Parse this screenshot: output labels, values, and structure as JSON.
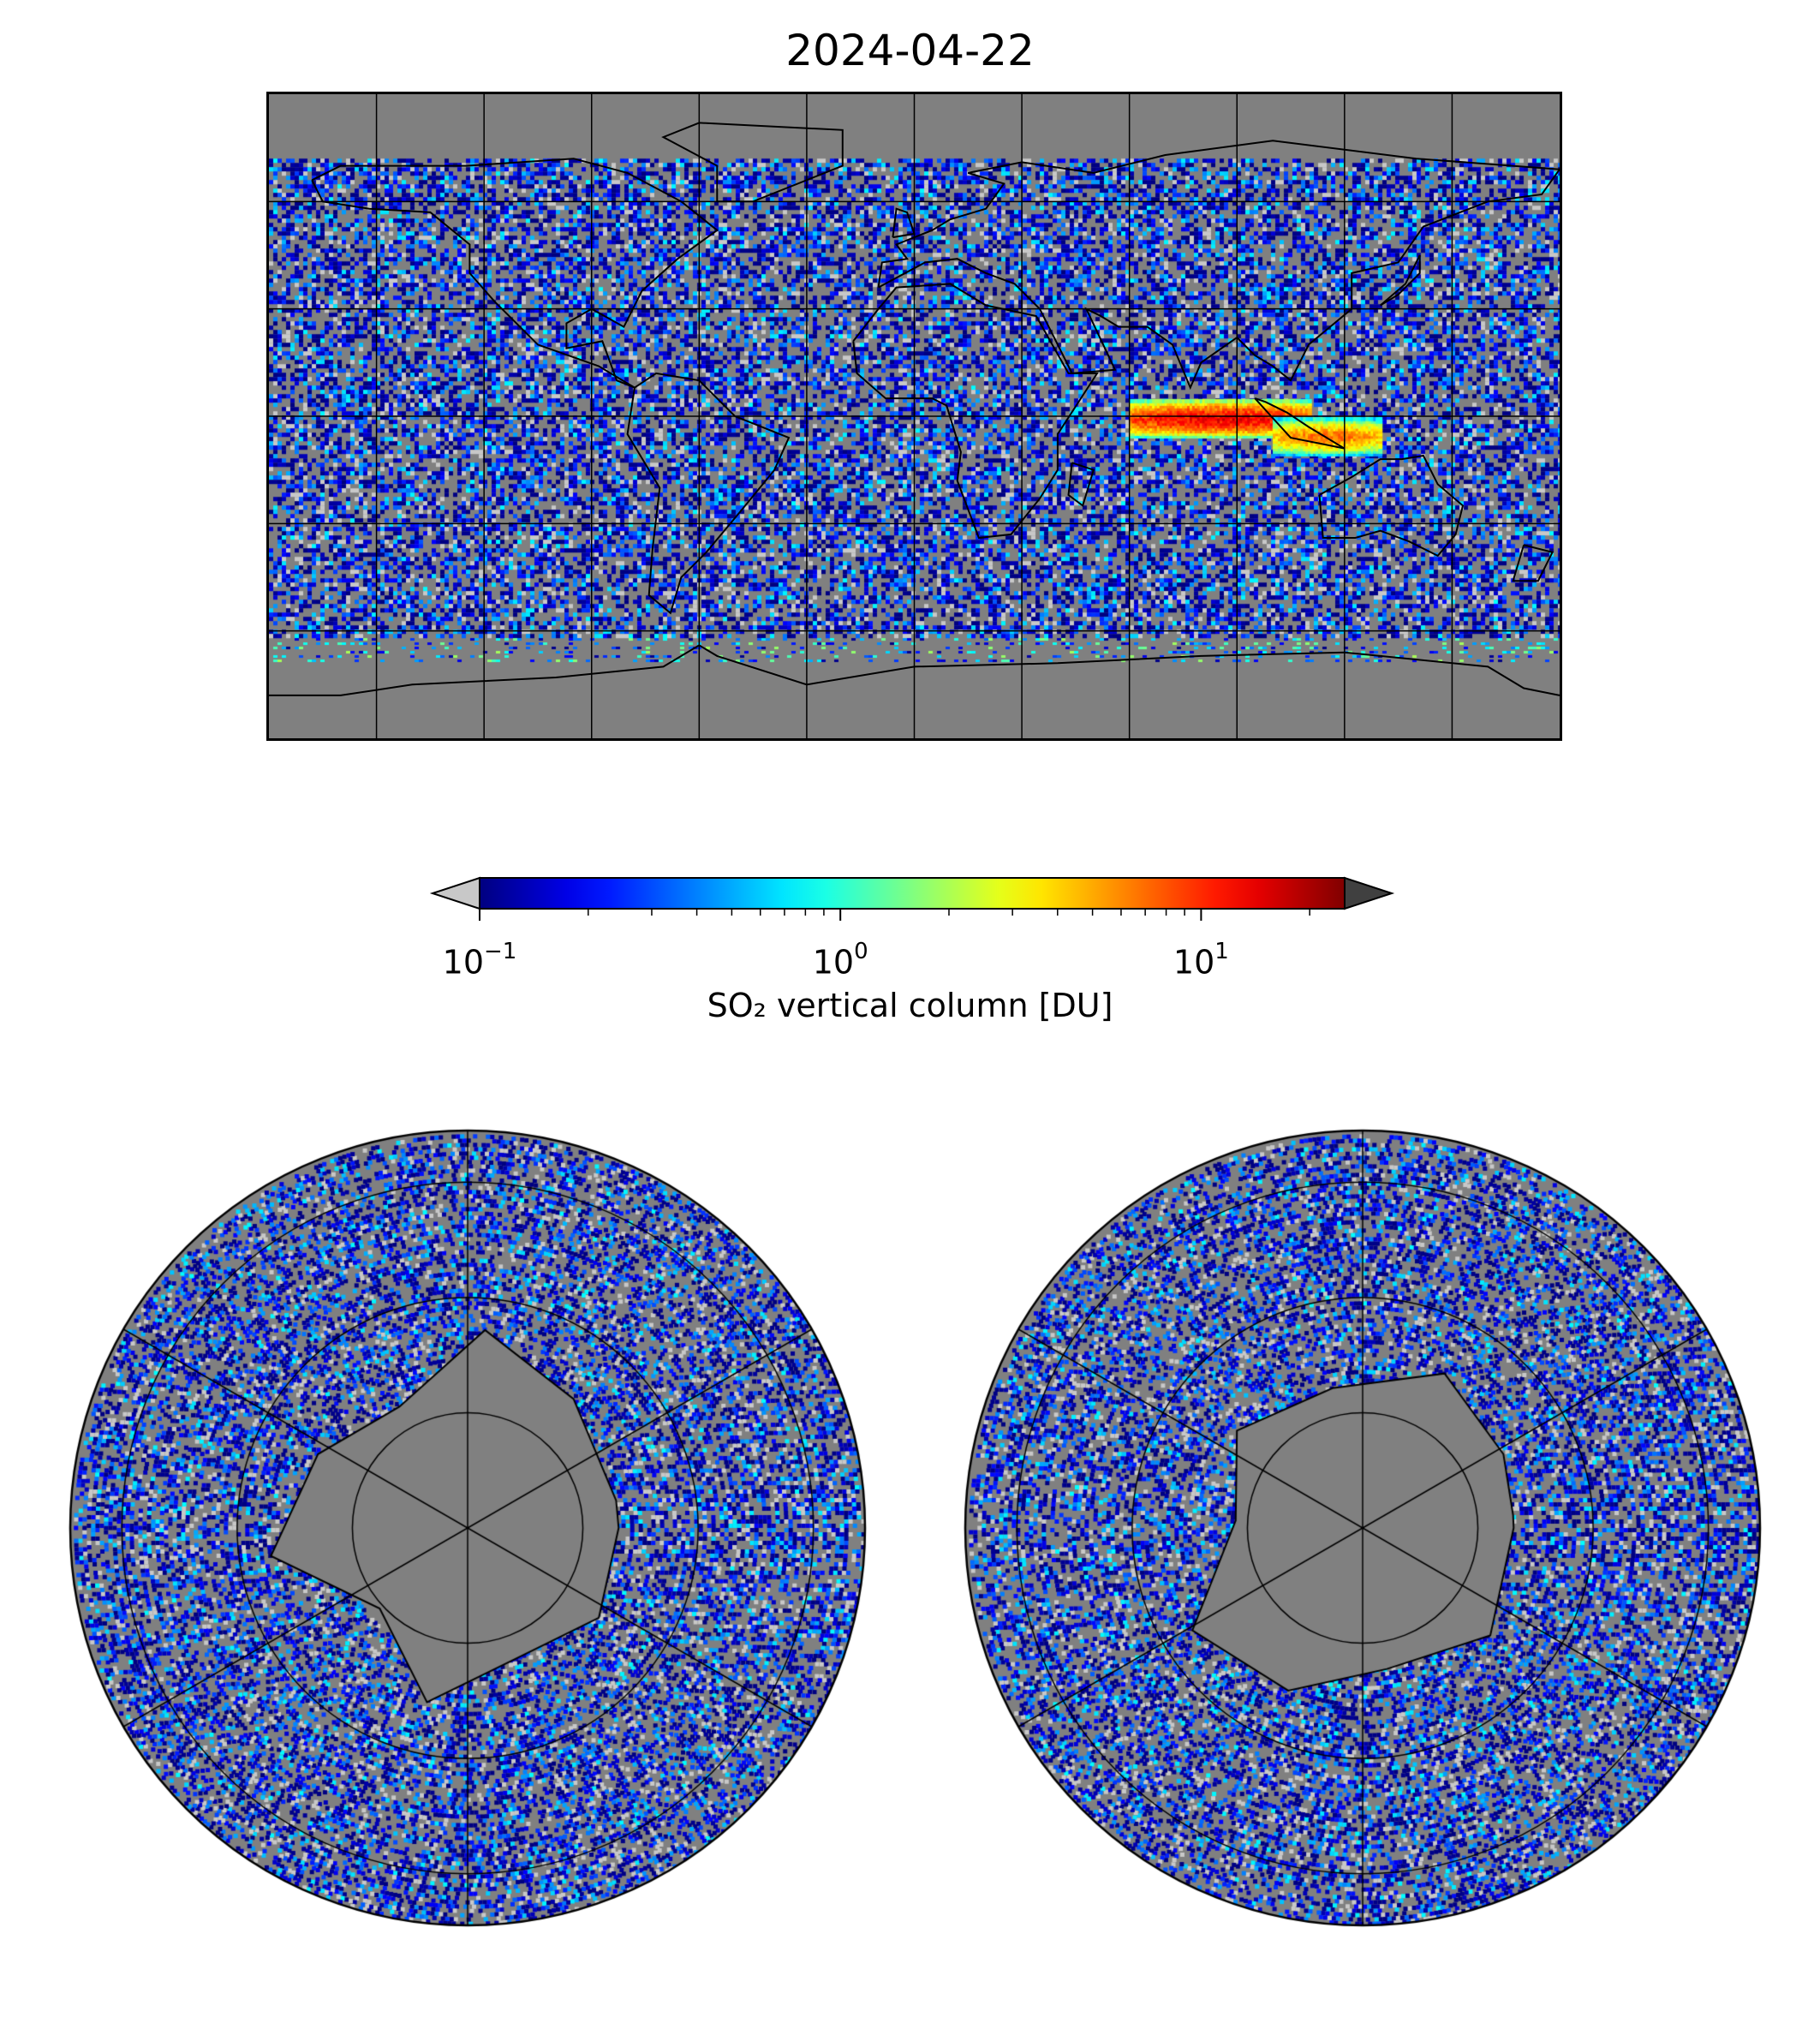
{
  "figure": {
    "title": "2024-04-22",
    "colorbar": {
      "label": "SO₂ vertical column [DU]",
      "scale": "log",
      "range": [
        0.1,
        25
      ],
      "colormap": "jet",
      "extend": "both",
      "under_color": "#c8c8c8",
      "over_color": "#404040",
      "ticks": [
        {
          "base": "10",
          "exp": "−1",
          "value": 0.1
        },
        {
          "base": "10",
          "exp": "0",
          "value": 1
        },
        {
          "base": "10",
          "exp": "1",
          "value": 10
        }
      ]
    },
    "panels": [
      {
        "name": "global-map",
        "projection": "plate-carree",
        "background": "#808080",
        "gridlines": "30-degree meridians and parallels",
        "extent_lon": [
          -180,
          180
        ],
        "extent_lat": [
          -90,
          90
        ]
      },
      {
        "name": "north-polar-map",
        "projection": "north-polar-stereographic",
        "background": "#808080"
      },
      {
        "name": "south-polar-map",
        "projection": "south-polar-stereographic",
        "background": "#808080"
      }
    ],
    "features": [
      {
        "name": "plume-indian-ocean",
        "description_value_du": 20,
        "lon_range": [
          60,
          110
        ],
        "lat_range": [
          -5,
          5
        ]
      },
      {
        "name": "plume-indonesia",
        "description_value_du": 10,
        "lon_range": [
          100,
          130
        ],
        "lat_range": [
          -10,
          0
        ]
      }
    ]
  }
}
